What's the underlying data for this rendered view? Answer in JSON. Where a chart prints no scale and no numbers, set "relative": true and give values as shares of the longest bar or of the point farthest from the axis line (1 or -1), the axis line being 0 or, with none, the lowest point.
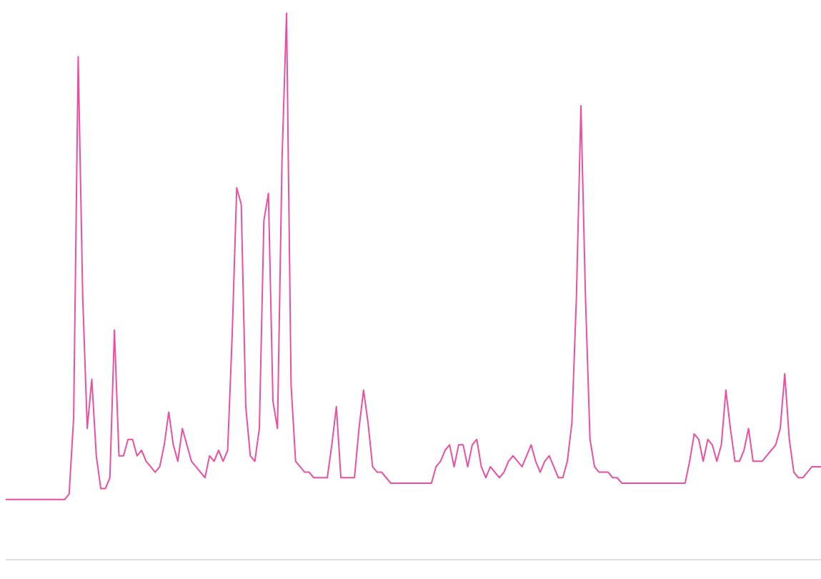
{
  "chart_data": {
    "type": "line",
    "relative": true,
    "grid": false,
    "marker": "none",
    "line_style": "solid",
    "categories": [
      null,
      null,
      null,
      null,
      null,
      null,
      null,
      null,
      null,
      null,
      null,
      null,
      null,
      null,
      null,
      null,
      null,
      null,
      null,
      null,
      null,
      null,
      null,
      null,
      null,
      null,
      null,
      null,
      null,
      null,
      null,
      null,
      null,
      null,
      null,
      null,
      null,
      null,
      null,
      null,
      null,
      null,
      null,
      null,
      null,
      null,
      null,
      null,
      null,
      null,
      null,
      null,
      null,
      null,
      null,
      null,
      null,
      null,
      null,
      null,
      null,
      null,
      null,
      null,
      null,
      null,
      null,
      null,
      null,
      null,
      null,
      null,
      null,
      null,
      null,
      null,
      null,
      null,
      null,
      null,
      null,
      null,
      null,
      null,
      null,
      null,
      null,
      null,
      null,
      null,
      null,
      null,
      null,
      null,
      null,
      null,
      null,
      null,
      null,
      null,
      null,
      null,
      null,
      null,
      null,
      null,
      null,
      null,
      null,
      null,
      null,
      null,
      null,
      null,
      null,
      null,
      null,
      null,
      null,
      null,
      null,
      null,
      null,
      null,
      null,
      null,
      null,
      null,
      null,
      null,
      null,
      null,
      null,
      null,
      null,
      null,
      null,
      null,
      null,
      null,
      null,
      null,
      null,
      null,
      null,
      null,
      null,
      null,
      null,
      null,
      null,
      null,
      null,
      null,
      null,
      null,
      null,
      null,
      null,
      null,
      null,
      null,
      null,
      null,
      null,
      null,
      null,
      null,
      null,
      null,
      null,
      null,
      null,
      null,
      null,
      null,
      null,
      null,
      null,
      null,
      null
    ],
    "series": [
      {
        "color": "#ec4fa0",
        "values": [
          0.11,
          0.11,
          0.11,
          0.11,
          0.11,
          0.11,
          0.11,
          0.11,
          0.11,
          0.11,
          0.11,
          0.11,
          0.11,
          0.11,
          0.12,
          0.26,
          0.92,
          0.48,
          0.24,
          0.33,
          0.19,
          0.13,
          0.13,
          0.15,
          0.42,
          0.19,
          0.19,
          0.22,
          0.22,
          0.19,
          0.2,
          0.18,
          0.17,
          0.16,
          0.17,
          0.21,
          0.27,
          0.21,
          0.18,
          0.24,
          0.21,
          0.18,
          0.17,
          0.16,
          0.15,
          0.19,
          0.18,
          0.2,
          0.18,
          0.2,
          0.41,
          0.68,
          0.65,
          0.28,
          0.19,
          0.18,
          0.24,
          0.62,
          0.67,
          0.29,
          0.24,
          0.73,
          1,
          0.32,
          0.18,
          0.17,
          0.16,
          0.16,
          0.15,
          0.15,
          0.15,
          0.15,
          0.21,
          0.28,
          0.15,
          0.15,
          0.15,
          0.15,
          0.24,
          0.31,
          0.25,
          0.17,
          0.16,
          0.16,
          0.15,
          0.14,
          0.14,
          0.14,
          0.14,
          0.14,
          0.14,
          0.14,
          0.14,
          0.14,
          0.14,
          0.17,
          0.18,
          0.2,
          0.21,
          0.17,
          0.21,
          0.21,
          0.17,
          0.21,
          0.22,
          0.17,
          0.15,
          0.17,
          0.16,
          0.15,
          0.16,
          0.18,
          0.19,
          0.18,
          0.17,
          0.19,
          0.21,
          0.18,
          0.16,
          0.18,
          0.19,
          0.17,
          0.15,
          0.15,
          0.18,
          0.25,
          0.48,
          0.83,
          0.48,
          0.22,
          0.17,
          0.16,
          0.16,
          0.16,
          0.15,
          0.15,
          0.14,
          0.14,
          0.14,
          0.14,
          0.14,
          0.14,
          0.14,
          0.14,
          0.14,
          0.14,
          0.14,
          0.14,
          0.14,
          0.14,
          0.14,
          0.18,
          0.23,
          0.22,
          0.18,
          0.22,
          0.21,
          0.18,
          0.21,
          0.31,
          0.24,
          0.18,
          0.18,
          0.2,
          0.24,
          0.18,
          0.18,
          0.18,
          0.19,
          0.2,
          0.21,
          0.24,
          0.34,
          0.22,
          0.16,
          0.15,
          0.15,
          0.16,
          0.17,
          0.17,
          0.17
        ]
      }
    ]
  }
}
